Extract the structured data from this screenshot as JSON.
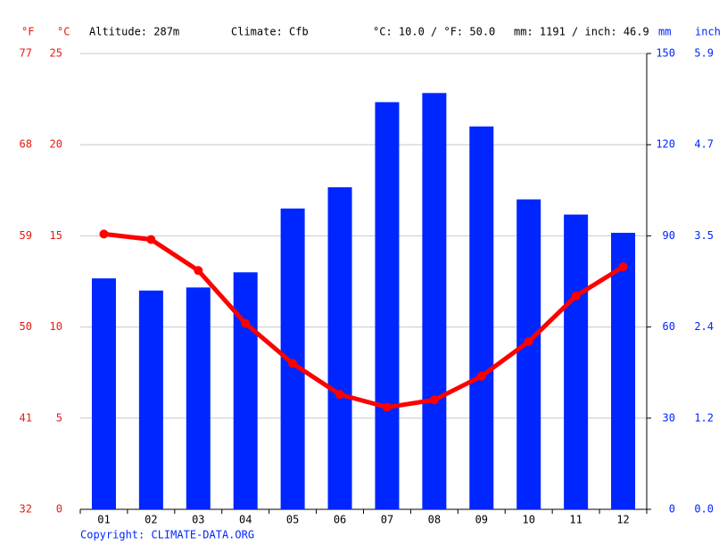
{
  "chart_data": {
    "type": "bar-line",
    "header": {
      "f_unit": "°F",
      "c_unit": "°C",
      "altitude": "Altitude: 287m",
      "climate": "Climate: Cfb",
      "avg_temp": "°C: 10.0 / °F: 50.0",
      "precip_total": "mm: 1191 / inch: 46.9",
      "mm_unit": "mm",
      "inch_unit": "inch"
    },
    "copyright": "Copyright: CLIMATE-DATA.ORG",
    "categories": [
      "01",
      "02",
      "03",
      "04",
      "05",
      "06",
      "07",
      "08",
      "09",
      "10",
      "11",
      "12"
    ],
    "series": [
      {
        "name": "Precipitation (mm)",
        "type": "bar",
        "axis": "y2",
        "color": "#0026ff",
        "values": [
          76,
          72,
          73,
          78,
          99,
          106,
          134,
          137,
          126,
          102,
          97,
          91
        ]
      },
      {
        "name": "Temperature (°C)",
        "type": "line",
        "axis": "y",
        "color": "#ff0000",
        "values": [
          15.1,
          14.8,
          13.1,
          10.2,
          8.0,
          6.3,
          5.6,
          6.0,
          7.3,
          9.2,
          11.7,
          13.3
        ]
      }
    ],
    "ylim": [
      0,
      25
    ],
    "yticks": [
      0,
      5,
      10,
      15,
      20,
      25
    ],
    "yticks_f": [
      32,
      41,
      50,
      59,
      68,
      77
    ],
    "y2lim": [
      0,
      150
    ],
    "y2ticks": [
      0,
      30,
      60,
      90,
      120,
      150
    ],
    "y2ticks_inch": [
      {
        "value": 0,
        "label": "0.0"
      },
      {
        "value": 1.2,
        "label": "1.2"
      },
      {
        "value": 2.4,
        "label": "2.4"
      },
      {
        "value": 3.5,
        "label": "3.5"
      },
      {
        "value": 4.7,
        "label": "4.7"
      },
      {
        "value": 5.9,
        "label": "5.9"
      }
    ],
    "grid": true
  }
}
